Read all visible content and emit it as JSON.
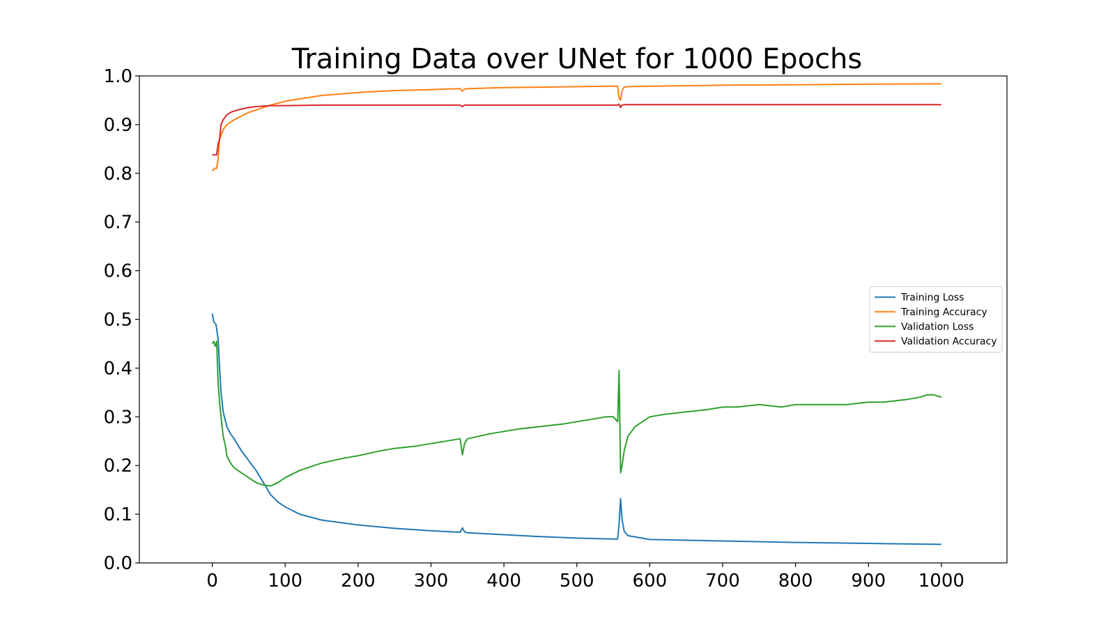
{
  "chart_data": {
    "type": "line",
    "title": "Training Data over UNet for 1000 Epochs",
    "xlabel": "",
    "ylabel": "",
    "xlim": [
      -100,
      1090
    ],
    "ylim": [
      0.0,
      1.0
    ],
    "grid": false,
    "legend_position": "center-right",
    "xticks": [
      0,
      100,
      200,
      300,
      400,
      500,
      600,
      700,
      800,
      900,
      1000
    ],
    "xtick_labels": [
      "0",
      "100",
      "200",
      "300",
      "400",
      "500",
      "600",
      "700",
      "800",
      "900",
      "1000"
    ],
    "yticks": [
      0.0,
      0.1,
      0.2,
      0.3,
      0.4,
      0.5,
      0.6,
      0.7,
      0.8,
      0.9,
      1.0
    ],
    "ytick_labels": [
      "0.0",
      "0.1",
      "0.2",
      "0.3",
      "0.4",
      "0.5",
      "0.6",
      "0.7",
      "0.8",
      "0.9",
      "1.0"
    ],
    "series": [
      {
        "name": "Training Loss",
        "color": "#1f77b4",
        "x": [
          0,
          2,
          5,
          8,
          10,
          12,
          15,
          20,
          25,
          30,
          40,
          50,
          60,
          70,
          80,
          90,
          100,
          120,
          150,
          200,
          250,
          300,
          340,
          343,
          346,
          350,
          400,
          450,
          500,
          550,
          556,
          558,
          560,
          562,
          565,
          570,
          600,
          700,
          800,
          900,
          1000
        ],
        "y": [
          0.512,
          0.495,
          0.49,
          0.46,
          0.4,
          0.35,
          0.31,
          0.28,
          0.265,
          0.255,
          0.23,
          0.21,
          0.19,
          0.165,
          0.14,
          0.125,
          0.115,
          0.1,
          0.088,
          0.078,
          0.071,
          0.066,
          0.063,
          0.072,
          0.064,
          0.062,
          0.058,
          0.054,
          0.051,
          0.049,
          0.049,
          0.08,
          0.132,
          0.09,
          0.065,
          0.056,
          0.048,
          0.045,
          0.042,
          0.04,
          0.038
        ]
      },
      {
        "name": "Training Accuracy",
        "color": "#ff7f0e",
        "x": [
          0,
          3,
          6,
          8,
          10,
          15,
          20,
          30,
          50,
          80,
          100,
          150,
          200,
          250,
          300,
          340,
          343,
          346,
          350,
          400,
          450,
          500,
          550,
          556,
          558,
          560,
          562,
          565,
          570,
          600,
          700,
          800,
          900,
          1000
        ],
        "y": [
          0.805,
          0.81,
          0.81,
          0.83,
          0.87,
          0.89,
          0.9,
          0.91,
          0.925,
          0.94,
          0.948,
          0.96,
          0.966,
          0.97,
          0.972,
          0.974,
          0.969,
          0.973,
          0.974,
          0.976,
          0.977,
          0.978,
          0.979,
          0.979,
          0.955,
          0.95,
          0.97,
          0.977,
          0.978,
          0.979,
          0.981,
          0.982,
          0.983,
          0.984
        ]
      },
      {
        "name": "Validation Loss",
        "color": "#2ca02c",
        "x": [
          0,
          2,
          4,
          6,
          8,
          10,
          12,
          15,
          18,
          20,
          25,
          30,
          40,
          50,
          60,
          70,
          80,
          90,
          100,
          120,
          150,
          180,
          200,
          230,
          250,
          280,
          300,
          320,
          340,
          343,
          346,
          350,
          380,
          400,
          420,
          450,
          480,
          500,
          520,
          540,
          550,
          556,
          558,
          560,
          562,
          565,
          570,
          580,
          600,
          620,
          650,
          680,
          700,
          720,
          750,
          780,
          800,
          830,
          850,
          870,
          900,
          920,
          950,
          970,
          980,
          990,
          1000
        ],
        "y": [
          0.45,
          0.455,
          0.445,
          0.455,
          0.37,
          0.33,
          0.3,
          0.26,
          0.24,
          0.22,
          0.205,
          0.195,
          0.185,
          0.175,
          0.165,
          0.16,
          0.158,
          0.165,
          0.175,
          0.19,
          0.205,
          0.215,
          0.22,
          0.23,
          0.235,
          0.24,
          0.245,
          0.25,
          0.255,
          0.222,
          0.245,
          0.255,
          0.265,
          0.27,
          0.275,
          0.28,
          0.285,
          0.29,
          0.295,
          0.3,
          0.3,
          0.29,
          0.395,
          0.185,
          0.2,
          0.23,
          0.26,
          0.28,
          0.3,
          0.305,
          0.31,
          0.315,
          0.32,
          0.32,
          0.325,
          0.32,
          0.325,
          0.325,
          0.325,
          0.325,
          0.33,
          0.33,
          0.335,
          0.34,
          0.345,
          0.345,
          0.34
        ]
      },
      {
        "name": "Validation Accuracy",
        "color": "#d62728",
        "x": [
          0,
          3,
          6,
          8,
          10,
          12,
          15,
          20,
          25,
          30,
          40,
          50,
          60,
          80,
          100,
          150,
          200,
          300,
          340,
          343,
          346,
          350,
          400,
          500,
          550,
          556,
          558,
          560,
          562,
          565,
          570,
          600,
          700,
          800,
          900,
          1000
        ],
        "y": [
          0.838,
          0.838,
          0.838,
          0.86,
          0.87,
          0.9,
          0.91,
          0.92,
          0.925,
          0.928,
          0.932,
          0.935,
          0.937,
          0.939,
          0.939,
          0.94,
          0.94,
          0.94,
          0.94,
          0.937,
          0.94,
          0.94,
          0.94,
          0.94,
          0.94,
          0.94,
          0.942,
          0.935,
          0.94,
          0.941,
          0.941,
          0.941,
          0.941,
          0.941,
          0.941,
          0.941
        ]
      }
    ]
  }
}
